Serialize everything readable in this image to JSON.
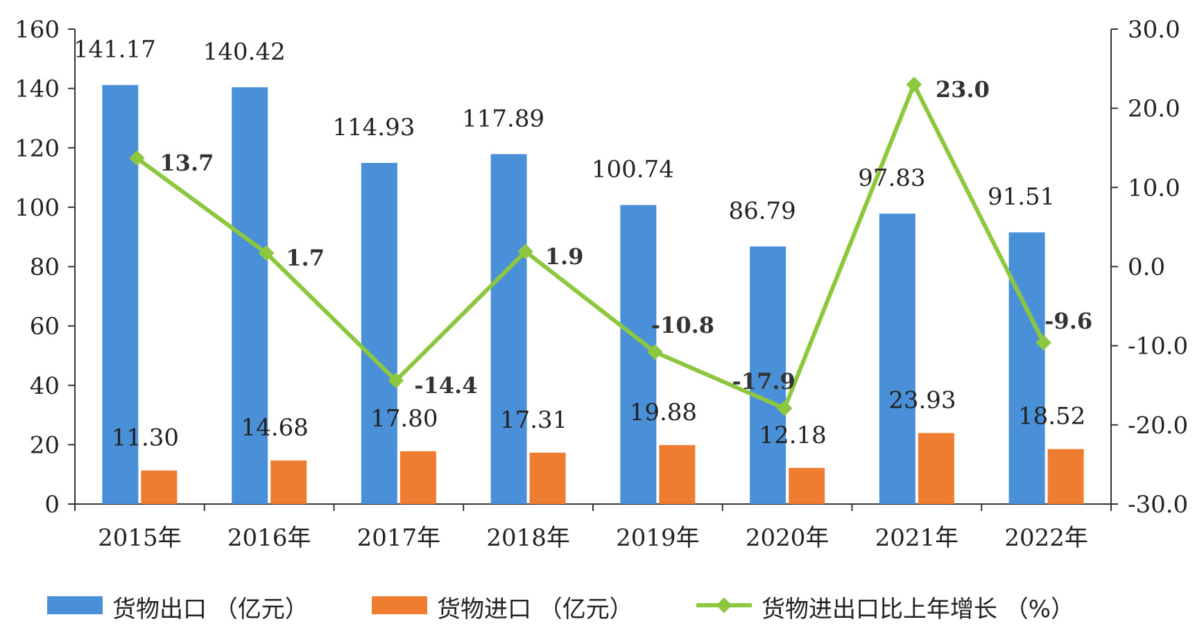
{
  "chart_data": {
    "type": "bar",
    "categories": [
      "2015年",
      "2016年",
      "2017年",
      "2018年",
      "2019年",
      "2020年",
      "2021年",
      "2022年"
    ],
    "series": [
      {
        "name": "货物出口（亿元）",
        "kind": "bar",
        "axis": "left",
        "color": "#4a90d9",
        "values": [
          141.17,
          140.42,
          114.93,
          117.89,
          100.74,
          86.79,
          97.83,
          91.51
        ],
        "labels": [
          "141.17",
          "140.42",
          "114.93",
          "117.89",
          "100.74",
          "86.79",
          "97.83",
          "91.51"
        ]
      },
      {
        "name": "货物进口（亿元）",
        "kind": "bar",
        "axis": "left",
        "color": "#ee7d31",
        "values": [
          11.3,
          14.68,
          17.8,
          17.31,
          19.88,
          12.18,
          23.93,
          18.52
        ],
        "labels": [
          "11.30",
          "14.68",
          "17.80",
          "17.31",
          "19.88",
          "12.18",
          "23.93",
          "18.52"
        ]
      },
      {
        "name": "货物进出口比上年增长（%）",
        "kind": "line",
        "axis": "right",
        "color": "#8dc63f",
        "values": [
          13.7,
          1.7,
          -14.4,
          1.9,
          -10.8,
          -17.9,
          23.0,
          -9.6
        ],
        "labels": [
          "13.7",
          "1.7",
          "-14.4",
          "1.9",
          "-10.8",
          "-17.9",
          "23.0",
          "-9.6"
        ]
      }
    ],
    "y_left": {
      "lim": [
        0,
        160
      ],
      "ticks": [
        "0",
        "20",
        "40",
        "60",
        "80",
        "100",
        "120",
        "140",
        "160"
      ]
    },
    "y_right": {
      "lim": [
        -30,
        30
      ],
      "ticks": [
        "-30.0",
        "-20.0",
        "-10.0",
        "0.0",
        "10.0",
        "20.0",
        "30.0"
      ]
    },
    "legend": {
      "position": "bottom",
      "items": [
        "货物出口 （亿元）",
        "货物进口 （亿元）",
        "货物进出口比上年增长 （%）"
      ]
    },
    "grid": false
  }
}
